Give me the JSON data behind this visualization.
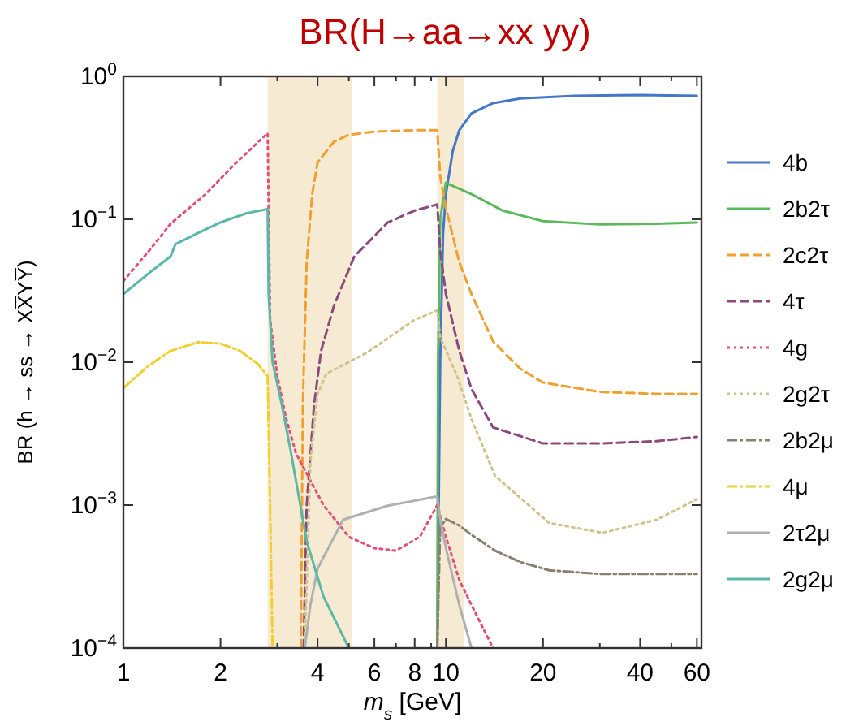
{
  "chart_data": {
    "type": "line",
    "title": "BR(H→aa→xx yy)",
    "xlabel": "m$_{s}$ [GeV]",
    "ylabel": "BR (h → ss → XX̅YY̅)",
    "log": "xy",
    "grid": false,
    "legend": "right",
    "xlim": [
      1,
      62
    ],
    "ylim": [
      0.0001,
      1
    ],
    "xticks": [
      1,
      2,
      {
        "value": 3,
        "label": null
      },
      4,
      {
        "value": 5,
        "label": null
      },
      6,
      {
        "value": 7,
        "label": null
      },
      8,
      {
        "value": 9,
        "label": null
      },
      10,
      20,
      {
        "value": 30,
        "label": null
      },
      40,
      {
        "value": 50,
        "label": null
      },
      60
    ],
    "yticks": [
      {
        "value": 0.0001,
        "label": "10$^{−4}$"
      },
      {
        "value": 0.001,
        "label": "10$^{−3}$"
      },
      {
        "value": 0.01,
        "label": "10$^{−2}$"
      },
      {
        "value": 0.1,
        "label": "10$^{−1}$"
      },
      {
        "value": 1,
        "label": "10$^{0}$"
      }
    ],
    "bands": [
      {
        "axis": "x",
        "from": 2.8,
        "to": 5.1,
        "color": "#f7ead3"
      },
      {
        "axis": "x",
        "from": 9.4,
        "to": 11.4,
        "color": "#f7ead3"
      }
    ],
    "series": [
      {
        "name": "4b",
        "color": "#4477c8",
        "line_style": "solid",
        "x": [
          9.4,
          9.6,
          9.8,
          10,
          10.5,
          11,
          12,
          14,
          17,
          25,
          40,
          60
        ],
        "values": [
          0.0001,
          0.01,
          0.08,
          0.15,
          0.3,
          0.42,
          0.55,
          0.65,
          0.7,
          0.73,
          0.74,
          0.73
        ]
      },
      {
        "name": "2b2τ",
        "color": "#5cb85c",
        "line_style": "solid",
        "x": [
          9.4,
          9.45,
          9.6,
          10,
          12,
          15,
          20,
          30,
          45,
          60
        ],
        "values": [
          0.0001,
          0.01,
          0.1,
          0.18,
          0.15,
          0.115,
          0.097,
          0.092,
          0.093,
          0.095
        ]
      },
      {
        "name": "2c2τ",
        "color": "#f0a030",
        "line_style": "dashed",
        "x": [
          3.55,
          3.6,
          3.7,
          3.85,
          4,
          4.5,
          5,
          6,
          8,
          9.4,
          9.6,
          10,
          11,
          12,
          14,
          17,
          20,
          30,
          45,
          60
        ],
        "values": [
          0.0001,
          0.005,
          0.05,
          0.15,
          0.25,
          0.35,
          0.39,
          0.41,
          0.42,
          0.42,
          0.2,
          0.12,
          0.05,
          0.03,
          0.014,
          0.009,
          0.0072,
          0.0062,
          0.006,
          0.006
        ]
      },
      {
        "name": "4τ",
        "color": "#8a4a7e",
        "line_style": "dashed",
        "x": [
          3.62,
          3.7,
          3.9,
          4.1,
          4.5,
          5.2,
          6.6,
          8,
          9.4,
          9.6,
          10,
          11,
          12,
          14,
          20,
          30,
          45,
          60
        ],
        "values": [
          0.0001,
          0.001,
          0.005,
          0.012,
          0.025,
          0.055,
          0.095,
          0.115,
          0.127,
          0.06,
          0.03,
          0.012,
          0.0065,
          0.0035,
          0.0027,
          0.0027,
          0.0028,
          0.003
        ]
      },
      {
        "name": "4g",
        "color": "#e0507a",
        "line_style": "dotted",
        "x": [
          1,
          1.2,
          1.4,
          1.8,
          2.2,
          2.8,
          2.85,
          3,
          3.2,
          3.43,
          4.17,
          5,
          6,
          7,
          8.3,
          9.4,
          10,
          11,
          12,
          14
        ],
        "values": [
          0.037,
          0.06,
          0.093,
          0.15,
          0.24,
          0.4,
          0.02,
          0.008,
          0.004,
          0.0023,
          0.001,
          0.0006,
          0.0005,
          0.00048,
          0.0006,
          0.001,
          0.0006,
          0.0003,
          0.0002,
          0.0001
        ]
      },
      {
        "name": "2g2τ",
        "color": "#cfc48a",
        "line_style": "dotted",
        "x": [
          3.65,
          3.8,
          4,
          4.26,
          5.7,
          8,
          9.4,
          9.6,
          10.9,
          12,
          14.2,
          20.9,
          30.6,
          45,
          60
        ],
        "values": [
          0.0001,
          0.002,
          0.006,
          0.0083,
          0.0117,
          0.0198,
          0.023,
          0.015,
          0.0077,
          0.004,
          0.0016,
          0.00075,
          0.00064,
          0.00079,
          0.0011
        ]
      },
      {
        "name": "2b2μ",
        "color": "#8a8070",
        "line_style": "dashdot",
        "x": [
          9.4,
          9.6,
          10,
          11,
          12,
          14.2,
          17,
          20.9,
          30,
          60
        ],
        "values": [
          0.0001,
          0.0007,
          0.0008,
          0.00072,
          0.00062,
          0.00048,
          0.0004,
          0.00035,
          0.00033,
          0.00033
        ]
      },
      {
        "name": "4μ",
        "color": "#f0d030",
        "line_style": "dashdot",
        "x": [
          1,
          1.2,
          1.4,
          1.7,
          2,
          2.3,
          2.6,
          2.8,
          2.85,
          2.9
        ],
        "values": [
          0.0066,
          0.0095,
          0.012,
          0.0138,
          0.0135,
          0.012,
          0.0098,
          0.008,
          0.001,
          0.0001
        ]
      },
      {
        "name": "2τ2μ",
        "color": "#b0b0b0",
        "line_style": "solid",
        "x": [
          3.65,
          3.8,
          4,
          4.8,
          6.6,
          9.4,
          9.6,
          10,
          11,
          12
        ],
        "values": [
          0.0001,
          0.0002,
          0.00036,
          0.00079,
          0.00099,
          0.00115,
          0.0008,
          0.0005,
          0.0002,
          0.0001
        ]
      },
      {
        "name": "2g2μ",
        "color": "#5ab8a8",
        "line_style": "solid",
        "x": [
          1,
          1.2,
          1.4,
          1.45,
          1.7,
          2,
          2.4,
          2.8,
          2.82,
          2.9,
          3.1,
          3.3,
          3.7,
          4.17,
          5
        ],
        "values": [
          0.03,
          0.042,
          0.055,
          0.067,
          0.08,
          0.095,
          0.11,
          0.118,
          0.03,
          0.01,
          0.005,
          0.0024,
          0.00056,
          0.00023,
          0.0001
        ]
      }
    ]
  }
}
